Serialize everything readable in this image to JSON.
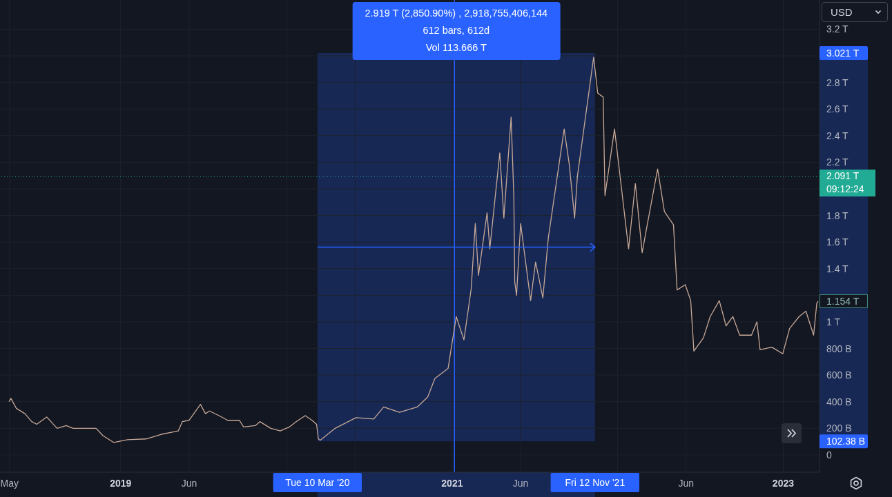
{
  "chart_data": {
    "type": "line",
    "x": [
      "2018-04-30",
      "2018-05-04",
      "2018-05-16",
      "2018-06-04",
      "2018-06-19",
      "2018-06-30",
      "2018-07-22",
      "2018-08-14",
      "2018-09-03",
      "2018-09-18",
      "2018-11-08",
      "2018-11-23",
      "2018-12-17",
      "2019-01-16",
      "2019-02-26",
      "2019-04-01",
      "2019-05-08",
      "2019-05-17",
      "2019-06-01",
      "2019-06-26",
      "2019-07-07",
      "2019-07-16",
      "2019-08-06",
      "2019-08-25",
      "2019-09-20",
      "2019-09-29",
      "2019-10-25",
      "2019-11-04",
      "2019-11-28",
      "2019-12-19",
      "2020-01-08",
      "2020-01-23",
      "2020-02-12",
      "2020-02-27",
      "2020-03-08",
      "2020-03-12",
      "2020-03-16",
      "2020-04-18",
      "2020-06-03",
      "2020-07-12",
      "2020-08-03",
      "2020-09-07",
      "2020-10-16",
      "2020-11-08",
      "2020-11-24",
      "2020-12-23",
      "2021-01-10",
      "2021-01-27",
      "2021-02-12",
      "2021-02-21",
      "2021-02-28",
      "2021-03-19",
      "2021-03-25",
      "2021-04-16",
      "2021-04-25",
      "2021-05-11",
      "2021-05-17",
      "2021-05-19",
      "2021-05-23",
      "2021-06-01",
      "2021-06-23",
      "2021-07-04",
      "2021-07-20",
      "2021-08-01",
      "2021-08-24",
      "2021-09-05",
      "2021-09-16",
      "2021-09-28",
      "2021-10-04",
      "2021-10-20",
      "2021-11-09",
      "2021-11-18",
      "2021-11-30",
      "2021-12-04",
      "2021-12-25",
      "2022-01-04",
      "2022-01-25",
      "2022-02-09",
      "2022-02-24",
      "2022-03-05",
      "2022-03-30",
      "2022-04-14",
      "2022-05-04",
      "2022-05-12",
      "2022-05-30",
      "2022-06-11",
      "2022-06-18",
      "2022-07-09",
      "2022-07-24",
      "2022-08-13",
      "2022-08-28",
      "2022-09-12",
      "2022-09-27",
      "2022-10-23",
      "2022-11-04",
      "2022-11-11",
      "2022-12-07",
      "2022-12-31",
      "2023-01-15",
      "2023-02-05",
      "2023-02-20",
      "2023-03-09",
      "2023-03-16",
      "2023-03-19"
    ],
    "values": [
      400000000000.0,
      425000000000.0,
      350000000000.0,
      310000000000.0,
      250000000000.0,
      230000000000.0,
      285000000000.0,
      200000000000.0,
      220000000000.0,
      200000000000.0,
      200000000000.0,
      145000000000.0,
      93000000000.0,
      114000000000.0,
      120000000000.0,
      155000000000.0,
      180000000000.0,
      250000000000.0,
      260000000000.0,
      380000000000.0,
      310000000000.0,
      330000000000.0,
      295000000000.0,
      260000000000.0,
      260000000000.0,
      210000000000.0,
      220000000000.0,
      250000000000.0,
      200000000000.0,
      180000000000.0,
      210000000000.0,
      250000000000.0,
      295000000000.0,
      260000000000.0,
      230000000000.0,
      120000000000.0,
      110000000000.0,
      200000000000.0,
      280000000000.0,
      270000000000.0,
      360000000000.0,
      320000000000.0,
      360000000000.0,
      435000000000.0,
      575000000000.0,
      650000000000.0,
      1040000000000.0,
      865000000000.0,
      1250000000000.0,
      1740000000000.0,
      1350000000000.0,
      1820000000000.0,
      1550000000000.0,
      2270000000000.0,
      1780000000000.0,
      2540000000000.0,
      1940000000000.0,
      1300000000000.0,
      1200000000000.0,
      1740000000000.0,
      1160000000000.0,
      1450000000000.0,
      1180000000000.0,
      1630000000000.0,
      2170000000000.0,
      2450000000000.0,
      2190000000000.0,
      1780000000000.0,
      2090000000000.0,
      2490000000000.0,
      2990000000000.0,
      2720000000000.0,
      2690000000000.0,
      1950000000000.0,
      2450000000000.0,
      2160000000000.0,
      1550000000000.0,
      2040000000000.0,
      1520000000000.0,
      1690000000000.0,
      2150000000000.0,
      1830000000000.0,
      1730000000000.0,
      1240000000000.0,
      1280000000000.0,
      1160000000000.0,
      780000000000.0,
      880000000000.0,
      1040000000000.0,
      1160000000000.0,
      970000000000.0,
      1040000000000.0,
      900000000000.0,
      900000000000.0,
      1000000000000.0,
      790000000000.0,
      810000000000.0,
      760000000000.0,
      950000000000.0,
      1040000000000.0,
      1080000000000.0,
      900000000000.0,
      1140000000000.0,
      1154000000000.0
    ],
    "value_labels": [
      null,
      null,
      null,
      null,
      null,
      null,
      null,
      null,
      null,
      null,
      null,
      null,
      null,
      null,
      null,
      null,
      null,
      null,
      null,
      null,
      null,
      null,
      null,
      null,
      null,
      null,
      null,
      null,
      null,
      null,
      null,
      null,
      null,
      null,
      null,
      null,
      null,
      null,
      null,
      null,
      null,
      null,
      null,
      null,
      null,
      null,
      null,
      null,
      null,
      null,
      null,
      null,
      null,
      null,
      null,
      null,
      null,
      null,
      null,
      null,
      null,
      null,
      null,
      null,
      null,
      null,
      null,
      null,
      null,
      null,
      null,
      null,
      null,
      null,
      null,
      null,
      null,
      null,
      null,
      null,
      null,
      null,
      null,
      null,
      null,
      null,
      null,
      null,
      null,
      null,
      null,
      null,
      null,
      null,
      null,
      null,
      null,
      null,
      null,
      null,
      null,
      null,
      null,
      "1.154 T"
    ],
    "color": "#c8a997",
    "line_style": "solid",
    "marker": "none",
    "ylabel": "USD",
    "xlim": [
      "2018-04-10",
      "2023-03-22"
    ],
    "xticks": [
      {
        "value": "2018-05-01",
        "label": "May"
      },
      {
        "value": "2019-01-01",
        "label": "2019"
      },
      {
        "value": "2019-06-01",
        "label": "Jun"
      },
      {
        "value": "2020-01-01",
        "label": null
      },
      {
        "value": "2020-03-10",
        "label": "Tue 10 Mar '20"
      },
      {
        "value": "2020-06-01",
        "label": null
      },
      {
        "value": "2021-01-01",
        "label": "2021"
      },
      {
        "value": "2021-06-01",
        "label": "Jun"
      },
      {
        "value": "2021-11-12",
        "label": "Fri 12 Nov '21"
      },
      {
        "value": "2022-01-01",
        "label": null
      },
      {
        "value": "2022-06-01",
        "label": "Jun"
      },
      {
        "value": "2023-01-01",
        "label": "2023"
      }
    ],
    "ylim": [
      -130000000000.0,
      3420000000000.0
    ],
    "yticks": [
      0,
      {
        "value": 102380000000.0,
        "label": "102.38 B"
      },
      {
        "value": 200000000000.0,
        "label": "200 B"
      },
      {
        "value": 400000000000.0,
        "label": "400 B"
      },
      {
        "value": 600000000000.0,
        "label": "600 B"
      },
      {
        "value": 800000000000.0,
        "label": "800 B"
      },
      {
        "value": 1000000000000.0,
        "label": "1 T"
      },
      {
        "value": 1200000000000.0,
        "label": null
      },
      {
        "value": 1400000000000.0,
        "label": "1.4 T"
      },
      {
        "value": 1600000000000.0,
        "label": "1.6 T"
      },
      {
        "value": 1800000000000.0,
        "label": "1.8 T"
      },
      {
        "value": 2000000000000.0,
        "label": null
      },
      {
        "value": 2200000000000.0,
        "label": "2.2 T"
      },
      {
        "value": 2400000000000.0,
        "label": "2.4 T"
      },
      {
        "value": 2600000000000.0,
        "label": "2.6 T"
      },
      {
        "value": 2800000000000.0,
        "label": "2.8 T"
      },
      {
        "value": 3000000000000.0,
        "label": null
      },
      {
        "value": 3021000000000.0,
        "label": "3.021 T"
      },
      {
        "value": 3200000000000.0,
        "label": "3.2 T"
      }
    ],
    "grid": true,
    "bands": [
      {
        "axis": "x",
        "from": "2020-03-10",
        "to": "2021-11-12",
        "color": "#2962ff"
      }
    ],
    "ref_lines": [
      {
        "axis": "y",
        "value": 2091000000000.0,
        "label": "2.091 T 09:12:24",
        "color": "#22ab94",
        "line_style": "dotted"
      },
      {
        "axis": "x",
        "value": "2021-01-06",
        "color": "#2962ff",
        "line_style": "solid"
      }
    ],
    "annotations": [
      "2.919 T (2,850.90%) , 2,918,755,406,144",
      "612 bars, 612d",
      "Vol 113.666 T"
    ]
  }
}
